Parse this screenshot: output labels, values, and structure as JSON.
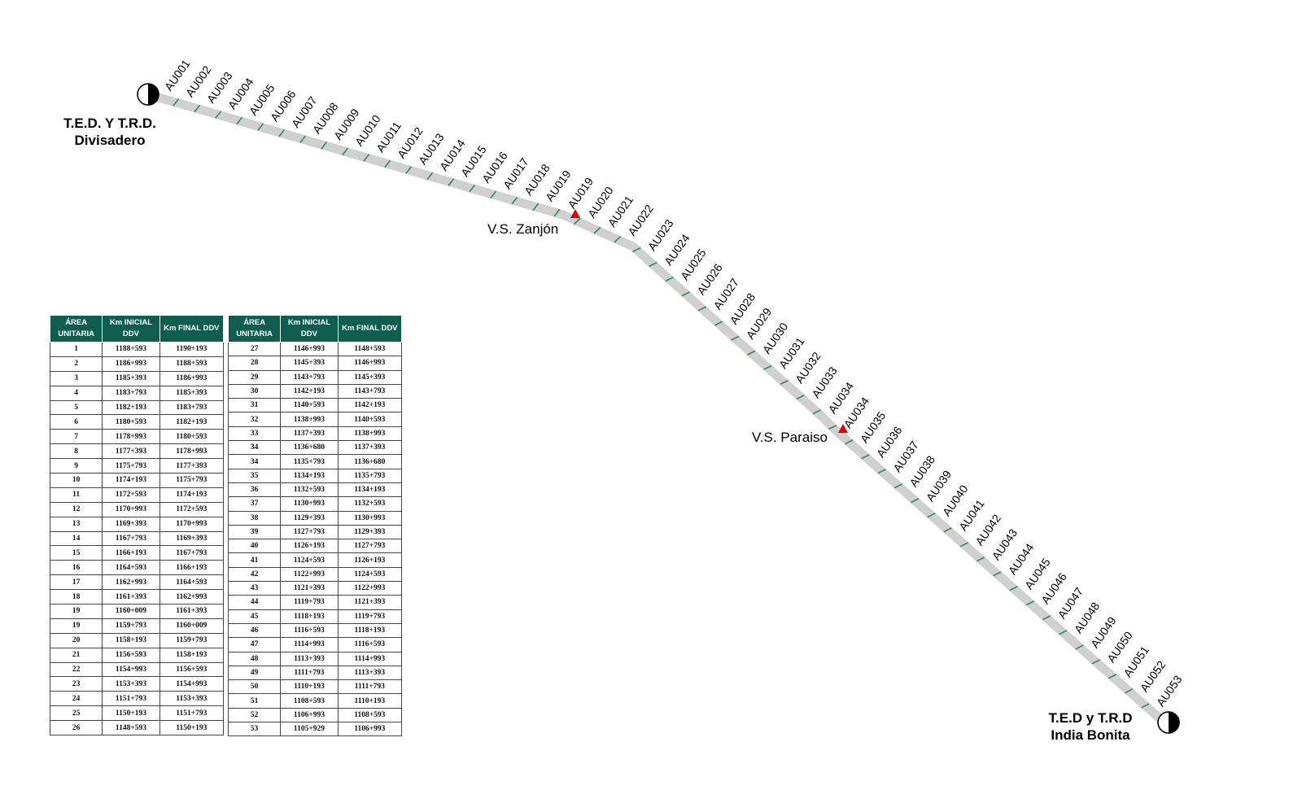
{
  "terminals": {
    "start": {
      "line1": "T.E.D. Y T.R.D.",
      "line2": "Divisadero"
    },
    "end": {
      "line1": "T.E.D y T.R.D",
      "line2": "India Bonita"
    }
  },
  "stations": {
    "zanjon": "V.S. Zanjón",
    "paraiso": "V.S. Paraiso"
  },
  "unit_labels": [
    "AU001",
    "AU002",
    "AU003",
    "AU004",
    "AU005",
    "AU006",
    "AU007",
    "AU008",
    "AU009",
    "AU010",
    "AU011",
    "AU012",
    "AU013",
    "AU014",
    "AU015",
    "AU016",
    "AU017",
    "AU018",
    "AU019",
    "AU019",
    "AU020",
    "AU021",
    "AU022",
    "AU023",
    "AU024",
    "AU025",
    "AU026",
    "AU027",
    "AU028",
    "AU029",
    "AU030",
    "AU031",
    "AU032",
    "AU033",
    "AU034",
    "AU034",
    "AU035",
    "AU036",
    "AU037",
    "AU038",
    "AU039",
    "AU040",
    "AU041",
    "AU042",
    "AU043",
    "AU044",
    "AU045",
    "AU046",
    "AU047",
    "AU048",
    "AU049",
    "AU050",
    "AU051",
    "AU052",
    "AU053"
  ],
  "table_headers": {
    "area": [
      "ÁREA",
      "UNITARIA"
    ],
    "km_inicial": [
      "Km INICIAL",
      "DDV"
    ],
    "km_final": "Km FINAL DDV"
  },
  "table_left": [
    [
      "1",
      "1188+593",
      "1190+193"
    ],
    [
      "2",
      "1186+993",
      "1188+593"
    ],
    [
      "3",
      "1185+393",
      "1186+993"
    ],
    [
      "4",
      "1183+793",
      "1185+393"
    ],
    [
      "5",
      "1182+193",
      "1183+793"
    ],
    [
      "6",
      "1180+593",
      "1182+193"
    ],
    [
      "7",
      "1178+993",
      "1180+593"
    ],
    [
      "8",
      "1177+393",
      "1178+993"
    ],
    [
      "9",
      "1175+793",
      "1177+393"
    ],
    [
      "10",
      "1174+193",
      "1175+793"
    ],
    [
      "11",
      "1172+593",
      "1174+193"
    ],
    [
      "12",
      "1170+993",
      "1172+593"
    ],
    [
      "13",
      "1169+393",
      "1170+993"
    ],
    [
      "14",
      "1167+793",
      "1169+393"
    ],
    [
      "15",
      "1166+193",
      "1167+793"
    ],
    [
      "16",
      "1164+593",
      "1166+193"
    ],
    [
      "17",
      "1162+993",
      "1164+593"
    ],
    [
      "18",
      "1161+393",
      "1162+993"
    ],
    [
      "19",
      "1160+009",
      "1161+393"
    ],
    [
      "19",
      "1159+793",
      "1160+009"
    ],
    [
      "20",
      "1158+193",
      "1159+793"
    ],
    [
      "21",
      "1156+593",
      "1158+193"
    ],
    [
      "22",
      "1154+993",
      "1156+593"
    ],
    [
      "23",
      "1153+393",
      "1154+993"
    ],
    [
      "24",
      "1151+793",
      "1153+393"
    ],
    [
      "25",
      "1150+193",
      "1151+793"
    ],
    [
      "26",
      "1148+593",
      "1150+193"
    ]
  ],
  "table_right": [
    [
      "27",
      "1146+993",
      "1148+593"
    ],
    [
      "28",
      "1145+393",
      "1146+993"
    ],
    [
      "29",
      "1143+793",
      "1145+393"
    ],
    [
      "30",
      "1142+193",
      "1143+793"
    ],
    [
      "31",
      "1140+593",
      "1142+193"
    ],
    [
      "32",
      "1138+993",
      "1140+593"
    ],
    [
      "33",
      "1137+393",
      "1138+993"
    ],
    [
      "34",
      "1136+680",
      "1137+393"
    ],
    [
      "34",
      "1135+793",
      "1136+680"
    ],
    [
      "35",
      "1134+193",
      "1135+793"
    ],
    [
      "36",
      "1132+593",
      "1134+193"
    ],
    [
      "37",
      "1130+993",
      "1132+593"
    ],
    [
      "38",
      "1129+393",
      "1130+993"
    ],
    [
      "39",
      "1127+793",
      "1129+393"
    ],
    [
      "40",
      "1126+193",
      "1127+793"
    ],
    [
      "41",
      "1124+593",
      "1126+193"
    ],
    [
      "42",
      "1122+993",
      "1124+593"
    ],
    [
      "43",
      "1121+393",
      "1122+993"
    ],
    [
      "44",
      "1119+793",
      "1121+393"
    ],
    [
      "45",
      "1118+193",
      "1119+793"
    ],
    [
      "46",
      "1116+593",
      "1118+193"
    ],
    [
      "47",
      "1114+993",
      "1116+593"
    ],
    [
      "48",
      "1113+393",
      "1114+993"
    ],
    [
      "49",
      "1111+793",
      "1113+393"
    ],
    [
      "50",
      "1110+193",
      "1111+793"
    ],
    [
      "51",
      "1108+593",
      "1110+193"
    ],
    [
      "52",
      "1106+993",
      "1108+593"
    ],
    [
      "53",
      "1105+929",
      "1106+993"
    ]
  ],
  "colors": {
    "route": "#d0d0d0",
    "segment_tick": "#2e8b57",
    "station_marker": "#e00000",
    "table_header": "#0d5e4f"
  }
}
